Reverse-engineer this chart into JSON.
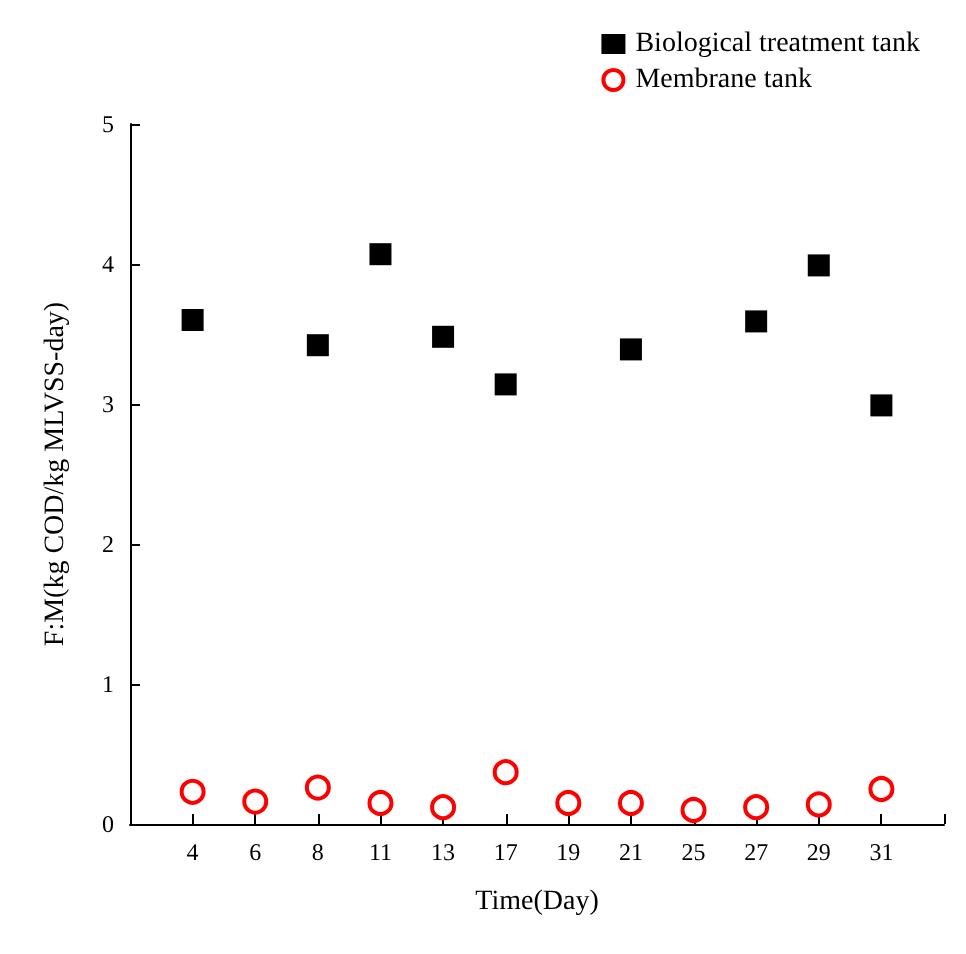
{
  "chart_data": {
    "type": "scatter",
    "xlabel": "Time(Day)",
    "ylabel": "F:M(kg COD/kg MLVSS-day)",
    "categories": [
      null,
      "4",
      "6",
      "8",
      "11",
      "13",
      "17",
      "19",
      "21",
      "25",
      "27",
      "29",
      "31",
      null
    ],
    "ylim": [
      0,
      5
    ],
    "yticks": [
      0,
      1,
      2,
      3,
      4,
      5
    ],
    "grid": false,
    "legend": "top right",
    "series": [
      {
        "name": "Biological treatment tank",
        "color": "#000000",
        "marker": "square",
        "values": [
          null,
          3.6,
          null,
          3.42,
          4.07,
          3.48,
          3.14,
          null,
          3.39,
          null,
          3.59,
          3.99,
          2.99,
          null
        ]
      },
      {
        "name": "Membrane tank",
        "color": "#ff0000",
        "marker": "circle",
        "values": [
          null,
          0.23,
          0.16,
          0.26,
          0.15,
          0.12,
          0.37,
          0.15,
          0.15,
          0.1,
          0.12,
          0.14,
          0.25,
          null
        ]
      }
    ]
  }
}
